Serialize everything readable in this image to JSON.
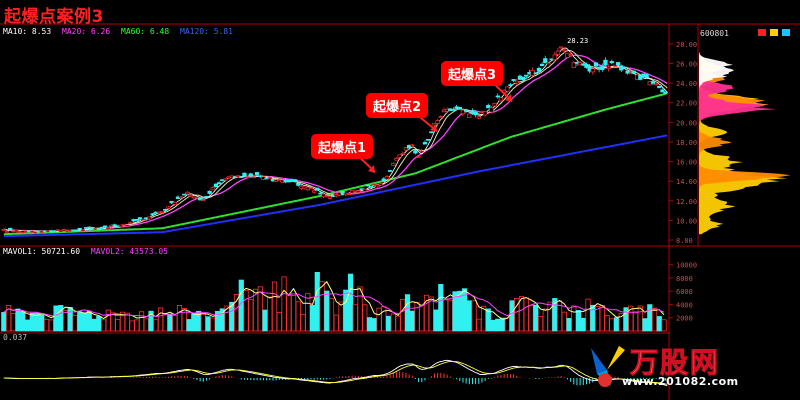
{
  "title": "起爆点案例3",
  "stock_code": "600801",
  "ma_legend": [
    {
      "label": "MA10: 8.53",
      "color": "#ffffff"
    },
    {
      "label": "MA20: 6.26",
      "color": "#ff40ff"
    },
    {
      "label": "MA60: 6.48",
      "color": "#30ff30"
    },
    {
      "label": "MA120: 5.81",
      "color": "#4060ff"
    }
  ],
  "vol_legend": [
    {
      "label": "MAVOL1: 50721.60",
      "color": "#ffffff"
    },
    {
      "label": "MAVOL2: 43573.05",
      "color": "#ff40ff"
    }
  ],
  "macd_legend": "0.037",
  "annotations": [
    {
      "label": "起爆点1"
    },
    {
      "label": "起爆点2"
    },
    {
      "label": "起爆点3"
    }
  ],
  "watermark": {
    "text": "万股网",
    "url": "www.201082.com"
  },
  "chart_data": {
    "type": "candlestick",
    "price_axis": {
      "ticks": [
        8,
        10,
        12,
        14,
        16,
        18,
        20,
        22,
        24,
        26,
        28
      ],
      "tick_labels": [
        "8.00",
        "10.00",
        "12.00",
        "14.00",
        "16.00",
        "18.00",
        "20.00",
        "22.00",
        "24.00",
        "26.00",
        "28.00"
      ],
      "range": [
        7.6,
        28.8
      ]
    },
    "peak_label": "28.23",
    "volume_axis": {
      "ticks": [
        2000,
        4000,
        6000,
        8000,
        10000
      ],
      "tick_labels": [
        "2000",
        "4000",
        "6000",
        "8000",
        "10000"
      ],
      "range": [
        0,
        11000
      ]
    },
    "price_keypoints": [
      [
        0,
        9.0
      ],
      [
        30,
        8.9
      ],
      [
        60,
        9.2
      ],
      [
        80,
        9.7
      ],
      [
        100,
        11.0
      ],
      [
        115,
        12.8
      ],
      [
        125,
        12.1
      ],
      [
        140,
        14.4
      ],
      [
        160,
        14.5
      ],
      [
        170,
        14.2
      ],
      [
        180,
        14.0
      ],
      [
        190,
        13.5
      ],
      [
        205,
        12.5
      ],
      [
        215,
        12.8
      ],
      [
        225,
        13.1
      ],
      [
        240,
        14.0
      ],
      [
        250,
        16.8
      ],
      [
        258,
        17.7
      ],
      [
        262,
        16.4
      ],
      [
        272,
        19.8
      ],
      [
        280,
        21.5
      ],
      [
        290,
        21.3
      ],
      [
        300,
        20.6
      ],
      [
        310,
        22.0
      ],
      [
        320,
        23.8
      ],
      [
        335,
        25.1
      ],
      [
        345,
        26.5
      ],
      [
        352,
        28.0
      ],
      [
        360,
        26.2
      ],
      [
        370,
        25.5
      ],
      [
        385,
        25.8
      ],
      [
        400,
        24.6
      ],
      [
        410,
        24.2
      ],
      [
        420,
        22.8
      ]
    ],
    "ma120_keypoints": [
      [
        0,
        8.4
      ],
      [
        100,
        8.8
      ],
      [
        200,
        11.6
      ],
      [
        300,
        15.0
      ],
      [
        420,
        18.7
      ]
    ],
    "ma60_keypoints": [
      [
        0,
        8.6
      ],
      [
        100,
        9.2
      ],
      [
        200,
        12.5
      ],
      [
        260,
        14.8
      ],
      [
        320,
        18.5
      ],
      [
        380,
        21.3
      ],
      [
        420,
        23.0
      ]
    ],
    "annotation_bars": [
      229,
      272,
      317
    ]
  }
}
